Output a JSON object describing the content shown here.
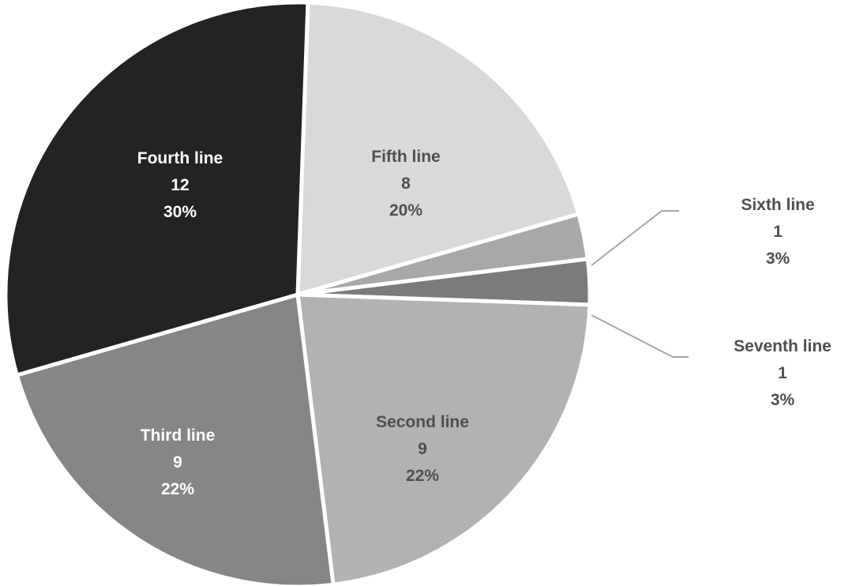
{
  "chart_data": {
    "type": "pie",
    "title": "",
    "start_angle_deg": 2,
    "direction": "clockwise",
    "slices": [
      {
        "label": "Fifth line",
        "value": 8,
        "percent": "20%",
        "color": "#d9d9d9",
        "text_color": "#4f4f4f",
        "label_position": "inside"
      },
      {
        "label": "Sixth line",
        "value": 1,
        "percent": "3%",
        "color": "#a8a8a8",
        "text_color": "#4f4f4f",
        "label_position": "outside-top-right"
      },
      {
        "label": "Seventh line",
        "value": 1,
        "percent": "3%",
        "color": "#7b7b7b",
        "text_color": "#4f4f4f",
        "label_position": "outside-bottom-right"
      },
      {
        "label": "Second line",
        "value": 9,
        "percent": "22%",
        "color": "#b2b2b2",
        "text_color": "#4f4f4f",
        "label_position": "inside"
      },
      {
        "label": "Third line",
        "value": 9,
        "percent": "22%",
        "color": "#868686",
        "text_color": "#ffffff",
        "label_position": "inside"
      },
      {
        "label": "Fourth line",
        "value": 12,
        "percent": "30%",
        "color": "#232323",
        "text_color": "#ffffff",
        "label_position": "inside"
      }
    ],
    "border_color": "#ffffff",
    "leader_line_color": "#a6a6a6"
  }
}
